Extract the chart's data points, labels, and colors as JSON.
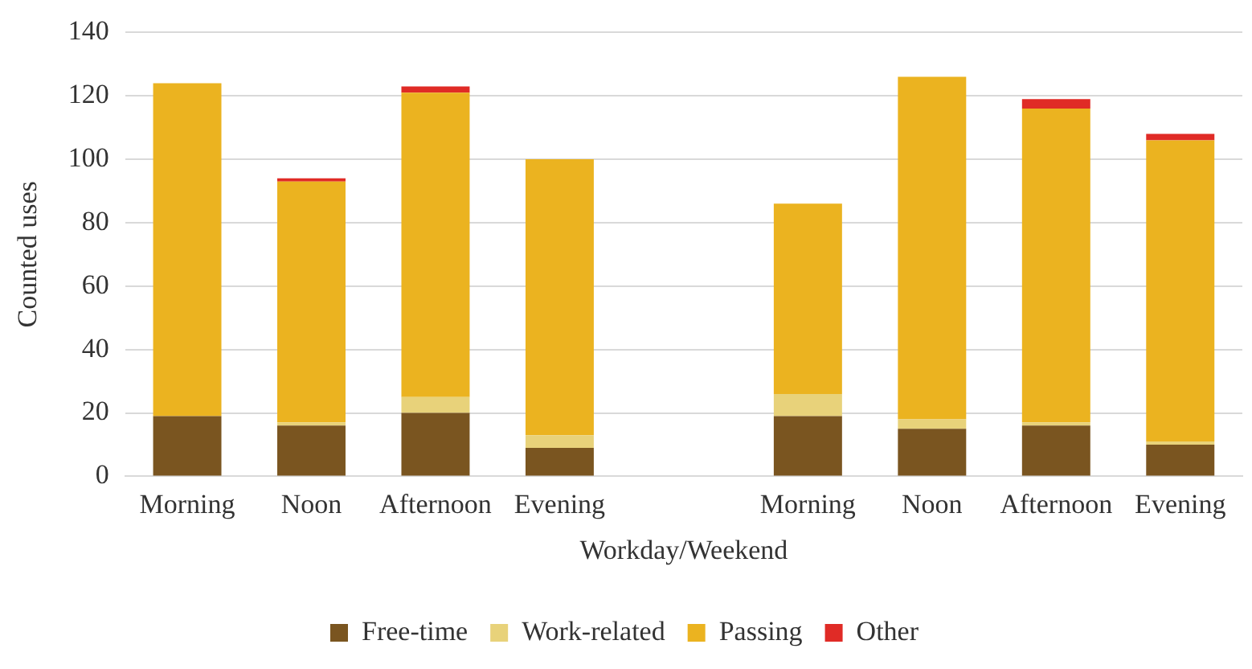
{
  "chart_data": {
    "type": "bar",
    "stacked": true,
    "categories": [
      "Morning",
      "Noon",
      "Afternoon",
      "Evening",
      null,
      "Morning",
      "Noon",
      "Afternoon",
      "Evening"
    ],
    "series": [
      {
        "name": "Free-time",
        "color": "#7a5520",
        "values": [
          19,
          16,
          20,
          9,
          null,
          19,
          15,
          16,
          10
        ]
      },
      {
        "name": "Work-related",
        "color": "#e8d27a",
        "values": [
          0,
          1,
          5,
          4,
          null,
          7,
          3,
          1,
          1
        ]
      },
      {
        "name": "Passing",
        "color": "#ebb320",
        "values": [
          105,
          76,
          96,
          87,
          null,
          60,
          108,
          99,
          95
        ]
      },
      {
        "name": "Other",
        "color": "#e02b26",
        "values": [
          0,
          1,
          2,
          0,
          null,
          0,
          0,
          3,
          2
        ]
      }
    ],
    "xlabel": "Workday/Weekend",
    "ylabel": "Counted uses",
    "ylim": [
      0,
      140
    ],
    "yticks": [
      0,
      20,
      40,
      60,
      80,
      100,
      120,
      140
    ],
    "grid": "y",
    "legend": "bottom"
  }
}
